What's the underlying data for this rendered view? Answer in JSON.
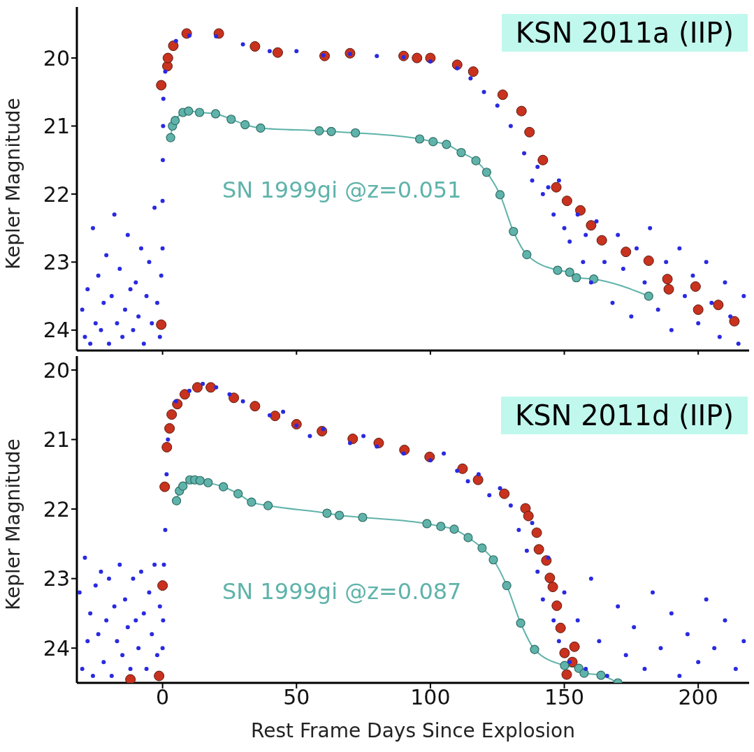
{
  "chart_data": [
    {
      "type": "scatter",
      "title": "KSN 2011a (IIP)",
      "ylabel": "Kepler Magnitude",
      "xlim": [
        -32,
        219
      ],
      "xticks": [
        0,
        50,
        100,
        150,
        200
      ],
      "ylim": [
        24.3,
        19.25
      ],
      "yticks": [
        20,
        21,
        22,
        23,
        24
      ],
      "tick_labels": "y",
      "marker": "circle",
      "series": [
        {
          "color": "#2a2ae0",
          "x": [
            -30,
            -29,
            -28,
            -27,
            -26,
            -25,
            -24,
            -23,
            -22,
            -21,
            -20,
            -19,
            -18,
            -17,
            -16,
            -15,
            -14,
            -13,
            -12,
            -11,
            -10,
            -9,
            -8,
            -7,
            -6,
            -5,
            -4,
            -3,
            -2,
            -1,
            -0.5,
            0,
            0,
            0.1,
            0.2,
            0.3,
            1,
            5,
            10,
            20,
            30,
            40,
            50,
            60,
            70,
            80,
            90,
            100,
            110,
            115,
            120,
            125,
            130,
            135,
            138,
            140,
            142,
            144,
            146,
            148,
            150,
            152,
            155,
            157,
            158,
            160,
            162,
            165,
            168,
            170,
            172,
            175,
            177,
            180,
            182,
            185,
            188,
            190,
            193,
            195,
            198,
            200,
            203,
            205,
            208,
            210,
            212,
            215,
            217
          ],
          "values": [
            23.7,
            24.1,
            23.4,
            24.2,
            22.5,
            23.9,
            23.2,
            24.0,
            23.6,
            22.9,
            24.2,
            23.5,
            22.3,
            23.9,
            23.1,
            24.1,
            23.7,
            22.6,
            23.4,
            24.0,
            23.3,
            23.8,
            22.8,
            24.2,
            23.5,
            23.0,
            23.9,
            22.2,
            23.6,
            24.1,
            23.2,
            22.8,
            22.1,
            21.5,
            21.0,
            20.6,
            20.2,
            19.75,
            19.67,
            19.68,
            19.8,
            19.9,
            19.9,
            19.96,
            19.94,
            19.97,
            19.99,
            20.05,
            20.15,
            20.3,
            20.5,
            20.7,
            21.0,
            21.4,
            21.8,
            21.6,
            22.0,
            21.9,
            22.3,
            21.8,
            22.5,
            22.7,
            22.3,
            23.0,
            22.6,
            23.3,
            22.4,
            23.0,
            23.6,
            22.6,
            23.1,
            23.8,
            22.8,
            23.3,
            22.5,
            23.7,
            23.0,
            24.0,
            22.8,
            23.5,
            23.2,
            23.9,
            23.0,
            23.6,
            24.1,
            23.3,
            23.8,
            24.2,
            23.5
          ]
        },
        {
          "color": "#c8321e",
          "x": [
            -0.5,
            -0.5,
            1.8,
            2,
            4,
            9,
            21,
            34.5,
            43,
            60.5,
            70,
            90,
            95,
            100,
            110,
            116,
            127,
            134,
            137,
            142,
            147,
            151,
            156,
            160,
            164,
            173,
            181.5,
            188.5,
            189,
            199,
            200,
            207.5,
            213.5
          ],
          "values": [
            23.92,
            20.4,
            20.12,
            20.0,
            19.82,
            19.64,
            19.64,
            19.83,
            19.92,
            19.97,
            19.93,
            19.97,
            20.0,
            20.0,
            20.1,
            20.2,
            20.54,
            20.78,
            21.09,
            21.5,
            21.9,
            22.1,
            22.24,
            22.46,
            22.68,
            22.85,
            22.98,
            23.25,
            23.4,
            23.36,
            23.7,
            23.63,
            23.87
          ]
        },
        {
          "type": "line",
          "name": "SN 1999gi @z=0.051",
          "color": "#5fb3aa",
          "x": [
            3,
            3.7,
            4.7,
            7.6,
            9.7,
            13.8,
            19.8,
            25.6,
            30.8,
            36.6,
            58.5,
            63,
            72,
            96,
            101,
            106,
            111.5,
            117,
            121,
            126,
            131,
            136,
            147.5,
            152,
            154.5,
            161,
            181.5
          ],
          "values": [
            21.17,
            21.0,
            20.92,
            20.8,
            20.78,
            20.8,
            20.82,
            20.9,
            20.98,
            21.03,
            21.07,
            21.08,
            21.1,
            21.19,
            21.23,
            21.27,
            21.39,
            21.51,
            21.68,
            22.01,
            22.55,
            22.89,
            23.12,
            23.15,
            23.23,
            23.25,
            23.5
          ]
        }
      ]
    },
    {
      "type": "scatter",
      "title": "KSN 2011d (IIP)",
      "xlabel": "Rest Frame Days Since Explosion",
      "ylabel": "Kepler Magnitude",
      "xlim": [
        -32,
        219
      ],
      "xticks": [
        0,
        50,
        100,
        150,
        200
      ],
      "ylim": [
        24.5,
        19.8
      ],
      "yticks": [
        20,
        21,
        22,
        23,
        24
      ],
      "marker": "circle",
      "series": [
        {
          "color": "#2a2ae0",
          "x": [
            -31,
            -30,
            -29,
            -28,
            -27,
            -26,
            -25,
            -24,
            -23,
            -22,
            -21,
            -20,
            -19,
            -18,
            -17,
            -16,
            -15,
            -14,
            -13,
            -12,
            -11,
            -10,
            -9,
            -8,
            -7,
            -6,
            -5,
            -4,
            -3,
            -2,
            -1,
            0,
            0.2,
            0.5,
            1,
            1.5,
            2,
            5,
            10,
            15,
            20,
            25,
            30,
            40,
            45,
            50,
            55,
            60,
            70,
            75,
            80,
            90,
            100,
            105,
            110,
            114,
            118,
            122,
            126,
            130,
            133,
            136,
            138,
            140,
            142,
            144,
            146,
            148,
            150,
            152,
            155,
            158,
            160,
            163,
            166,
            170,
            173,
            176,
            180,
            183,
            186,
            190,
            193,
            196,
            200,
            203,
            206,
            210,
            214,
            217
          ],
          "values": [
            23.2,
            24.3,
            22.7,
            23.9,
            23.5,
            24.4,
            23.1,
            23.8,
            22.9,
            24.2,
            23.6,
            23.0,
            24.4,
            23.4,
            23.9,
            22.8,
            24.1,
            23.3,
            23.7,
            24.3,
            23.0,
            23.6,
            24.0,
            22.9,
            23.5,
            24.3,
            23.2,
            23.8,
            22.8,
            24.1,
            23.4,
            24.0,
            23.6,
            22.8,
            22.3,
            21.5,
            21.0,
            20.45,
            20.3,
            20.2,
            20.25,
            20.35,
            20.45,
            20.65,
            20.6,
            20.8,
            20.95,
            20.85,
            21.05,
            20.95,
            21.1,
            21.2,
            21.3,
            21.2,
            21.45,
            21.6,
            21.5,
            21.8,
            21.7,
            21.95,
            22.3,
            22.6,
            22.2,
            22.9,
            23.3,
            22.7,
            23.6,
            23.9,
            23.2,
            24.2,
            23.6,
            24.3,
            23.0,
            23.9,
            24.4,
            23.4,
            24.1,
            23.7,
            24.3,
            23.2,
            24.0,
            23.5,
            24.4,
            23.8,
            24.2,
            23.3,
            24.0,
            23.6,
            24.3,
            23.9
          ]
        },
        {
          "color": "#c8321e",
          "x": [
            -12,
            -1.3,
            0,
            0.8,
            1.6,
            2.6,
            3.4,
            5.5,
            8.3,
            13,
            18,
            26.6,
            34.5,
            42,
            50,
            59.5,
            71,
            80.7,
            90.3,
            99.7,
            112,
            117.8,
            127.6,
            135.5,
            136.6,
            139.7,
            140.5,
            143.3,
            144.6,
            145.7,
            147.2,
            148.6,
            153.8,
            150.1,
            153,
            150.9
          ],
          "values": [
            24.45,
            24.4,
            23.1,
            21.68,
            21.11,
            20.84,
            20.64,
            20.49,
            20.35,
            20.25,
            20.25,
            20.4,
            20.52,
            20.66,
            20.78,
            20.88,
            20.99,
            21.05,
            21.15,
            21.25,
            21.42,
            21.58,
            21.78,
            21.99,
            22.1,
            22.34,
            22.58,
            22.74,
            22.99,
            23.12,
            23.39,
            23.71,
            23.98,
            24.07,
            24.2,
            24.38
          ]
        },
        {
          "type": "line",
          "name": "SN 1999gi @z=0.087",
          "color": "#5fb3aa",
          "x": [
            5.2,
            6.3,
            7.6,
            10.2,
            12,
            14,
            17,
            22.7,
            28.2,
            33.2,
            39.4,
            61.4,
            66,
            74.7,
            98.7,
            103.9,
            108.9,
            114.1,
            119.3,
            123.5,
            128.5,
            133.7,
            138.9,
            150.1,
            155.4,
            157.4,
            163.7,
            170
          ],
          "values": [
            21.88,
            21.74,
            21.67,
            21.58,
            21.58,
            21.59,
            21.62,
            21.68,
            21.78,
            21.9,
            21.95,
            22.06,
            22.09,
            22.12,
            22.21,
            22.25,
            22.29,
            22.41,
            22.56,
            22.73,
            23.1,
            23.64,
            24.02,
            24.25,
            24.29,
            24.36,
            24.39,
            24.5
          ]
        }
      ]
    }
  ]
}
